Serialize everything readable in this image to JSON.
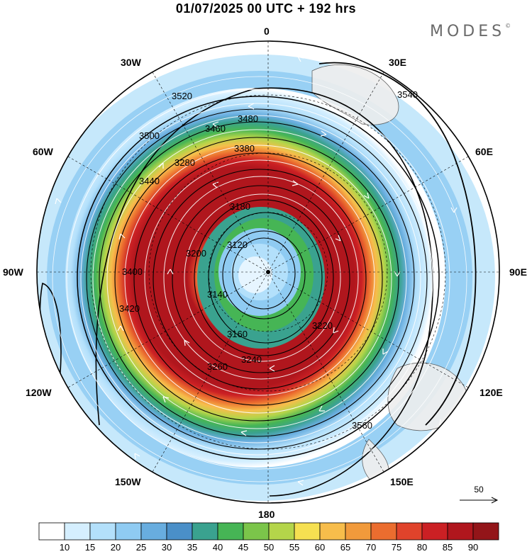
{
  "header": {
    "title": "01/07/2025  00 UTC  + 192 hrs",
    "brand": "MODES",
    "brand_mark": "©"
  },
  "map": {
    "projection": "polar-stereographic-south",
    "center_lon": 0,
    "longitude_labels": [
      {
        "id": "0",
        "text": "0"
      },
      {
        "id": "30e",
        "text": "30E"
      },
      {
        "id": "60e",
        "text": "60E"
      },
      {
        "id": "90e",
        "text": "90E"
      },
      {
        "id": "120e",
        "text": "120E"
      },
      {
        "id": "150e",
        "text": "150E"
      },
      {
        "id": "180",
        "text": "180"
      },
      {
        "id": "150w",
        "text": "150W"
      },
      {
        "id": "120w",
        "text": "120W"
      },
      {
        "id": "90w",
        "text": "90W"
      },
      {
        "id": "60w",
        "text": "60W"
      },
      {
        "id": "30w",
        "text": "30W"
      }
    ],
    "contour_labels": [
      "3520",
      "3540",
      "3480",
      "3460",
      "3500",
      "3380",
      "3440",
      "3280",
      "3180",
      "3120",
      "3140",
      "3200",
      "3160",
      "3220",
      "3240",
      "3260",
      "3400",
      "3420",
      "3560"
    ],
    "colors": {
      "coast": "#555555",
      "land": "#eeeeee",
      "streamline": "#ffffff",
      "contour": "#000000"
    }
  },
  "wind_scale": {
    "value_label": "50"
  },
  "colorbar": {
    "colors": [
      "#ffffff",
      "#d5efff",
      "#b3e0fb",
      "#8fcbf2",
      "#68addf",
      "#4a8fc8",
      "#3aa28f",
      "#46b555",
      "#7bc54a",
      "#b4d54a",
      "#f6e051",
      "#f7bd4b",
      "#f19a3b",
      "#eb6d2f",
      "#e0432b",
      "#cb2024",
      "#b0161d",
      "#931519"
    ],
    "tick_labels": [
      "10",
      "15",
      "20",
      "25",
      "30",
      "35",
      "40",
      "45",
      "50",
      "55",
      "60",
      "65",
      "70",
      "75",
      "80",
      "85",
      "90"
    ]
  }
}
